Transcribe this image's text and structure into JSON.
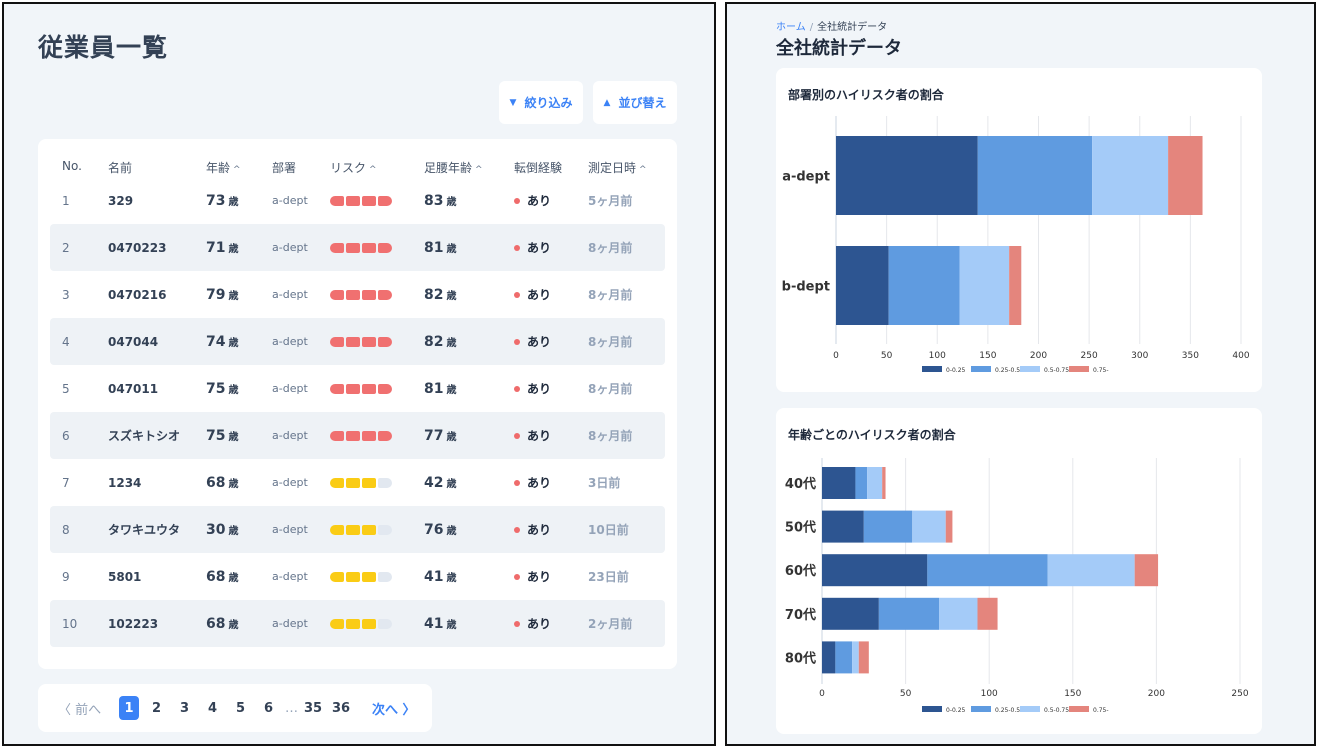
{
  "employee_list": {
    "title": "従業員一覧",
    "filter_label": "絞り込み",
    "sort_label": "並び替え",
    "columns": {
      "no": "No.",
      "name": "名前",
      "age": "年齢",
      "dept": "部署",
      "risk": "リスク",
      "foot_age": "足腰年齢",
      "fall": "転倒経験",
      "measured": "測定日時"
    },
    "age_unit": "歳",
    "rows": [
      {
        "no": "1",
        "name": "329",
        "age": "73",
        "dept": "a-dept",
        "risk_level": 4,
        "risk_color": "#f07070",
        "foot_age": "83",
        "fall": "あり",
        "measured": "5ヶ月前"
      },
      {
        "no": "2",
        "name": "0470223",
        "age": "71",
        "dept": "a-dept",
        "risk_level": 4,
        "risk_color": "#f07070",
        "foot_age": "81",
        "fall": "あり",
        "measured": "8ヶ月前"
      },
      {
        "no": "3",
        "name": "0470216",
        "age": "79",
        "dept": "a-dept",
        "risk_level": 4,
        "risk_color": "#f07070",
        "foot_age": "82",
        "fall": "あり",
        "measured": "8ヶ月前"
      },
      {
        "no": "4",
        "name": "047044",
        "age": "74",
        "dept": "a-dept",
        "risk_level": 4,
        "risk_color": "#f07070",
        "foot_age": "82",
        "fall": "あり",
        "measured": "8ヶ月前"
      },
      {
        "no": "5",
        "name": "047011",
        "age": "75",
        "dept": "a-dept",
        "risk_level": 4,
        "risk_color": "#f07070",
        "foot_age": "81",
        "fall": "あり",
        "measured": "8ヶ月前"
      },
      {
        "no": "6",
        "name": "スズキトシオ",
        "age": "75",
        "dept": "a-dept",
        "risk_level": 4,
        "risk_color": "#f07070",
        "foot_age": "77",
        "fall": "あり",
        "measured": "8ヶ月前"
      },
      {
        "no": "7",
        "name": "1234",
        "age": "68",
        "dept": "a-dept",
        "risk_level": 3,
        "risk_color": "#facc15",
        "foot_age": "42",
        "fall": "あり",
        "measured": "3日前"
      },
      {
        "no": "8",
        "name": "タワキユウタ",
        "age": "30",
        "dept": "a-dept",
        "risk_level": 3,
        "risk_color": "#facc15",
        "foot_age": "76",
        "fall": "あり",
        "measured": "10日前"
      },
      {
        "no": "9",
        "name": "5801",
        "age": "68",
        "dept": "a-dept",
        "risk_level": 3,
        "risk_color": "#facc15",
        "foot_age": "41",
        "fall": "あり",
        "measured": "23日前"
      },
      {
        "no": "10",
        "name": "102223",
        "age": "68",
        "dept": "a-dept",
        "risk_level": 3,
        "risk_color": "#facc15",
        "foot_age": "41",
        "fall": "あり",
        "measured": "2ヶ月前"
      }
    ],
    "pagination": {
      "prev": "〈 前へ",
      "pages": [
        "1",
        "2",
        "3",
        "4",
        "5",
        "6"
      ],
      "ellipsis": "…",
      "last_pages": [
        "35",
        "36"
      ],
      "current": "1",
      "next": "次へ 〉"
    }
  },
  "stats": {
    "breadcrumb_home": "ホーム",
    "breadcrumb_sep": "/",
    "breadcrumb_current": "全社統計データ",
    "title": "全社統計データ"
  },
  "colors": {
    "accent": "#3b82f6",
    "series": [
      "#2d5591",
      "#5f9be0",
      "#a4cbf8",
      "#e4857d"
    ]
  },
  "chart_data": [
    {
      "type": "bar",
      "orientation": "horizontal",
      "stacked": true,
      "title": "部署別のハイリスク者の割合",
      "categories": [
        "a-dept",
        "b-dept"
      ],
      "series": [
        {
          "name": "0-0.25",
          "values": [
            140,
            52
          ]
        },
        {
          "name": "0.25-0.5",
          "values": [
            113,
            70
          ]
        },
        {
          "name": "0.5-0.75",
          "values": [
            75,
            49
          ]
        },
        {
          "name": "0.75-",
          "values": [
            34,
            12
          ]
        }
      ],
      "xlim": [
        0,
        400
      ],
      "xticks": [
        0,
        50,
        100,
        150,
        200,
        250,
        300,
        350,
        400
      ],
      "legend": "bottom",
      "grid": true
    },
    {
      "type": "bar",
      "orientation": "horizontal",
      "stacked": true,
      "title": "年齢ごとのハイリスク者の割合",
      "categories": [
        "40代",
        "50代",
        "60代",
        "70代",
        "80代"
      ],
      "series": [
        {
          "name": "0-0.25",
          "values": [
            20,
            25,
            63,
            34,
            8
          ]
        },
        {
          "name": "0.25-0.5",
          "values": [
            7,
            29,
            72,
            36,
            10
          ]
        },
        {
          "name": "0.5-0.75",
          "values": [
            9,
            20,
            52,
            23,
            4
          ]
        },
        {
          "name": "0.75-",
          "values": [
            2,
            4,
            14,
            12,
            6
          ]
        }
      ],
      "xlim": [
        0,
        250
      ],
      "xticks": [
        0,
        50,
        100,
        150,
        200,
        250
      ],
      "legend": "bottom",
      "grid": true
    }
  ]
}
